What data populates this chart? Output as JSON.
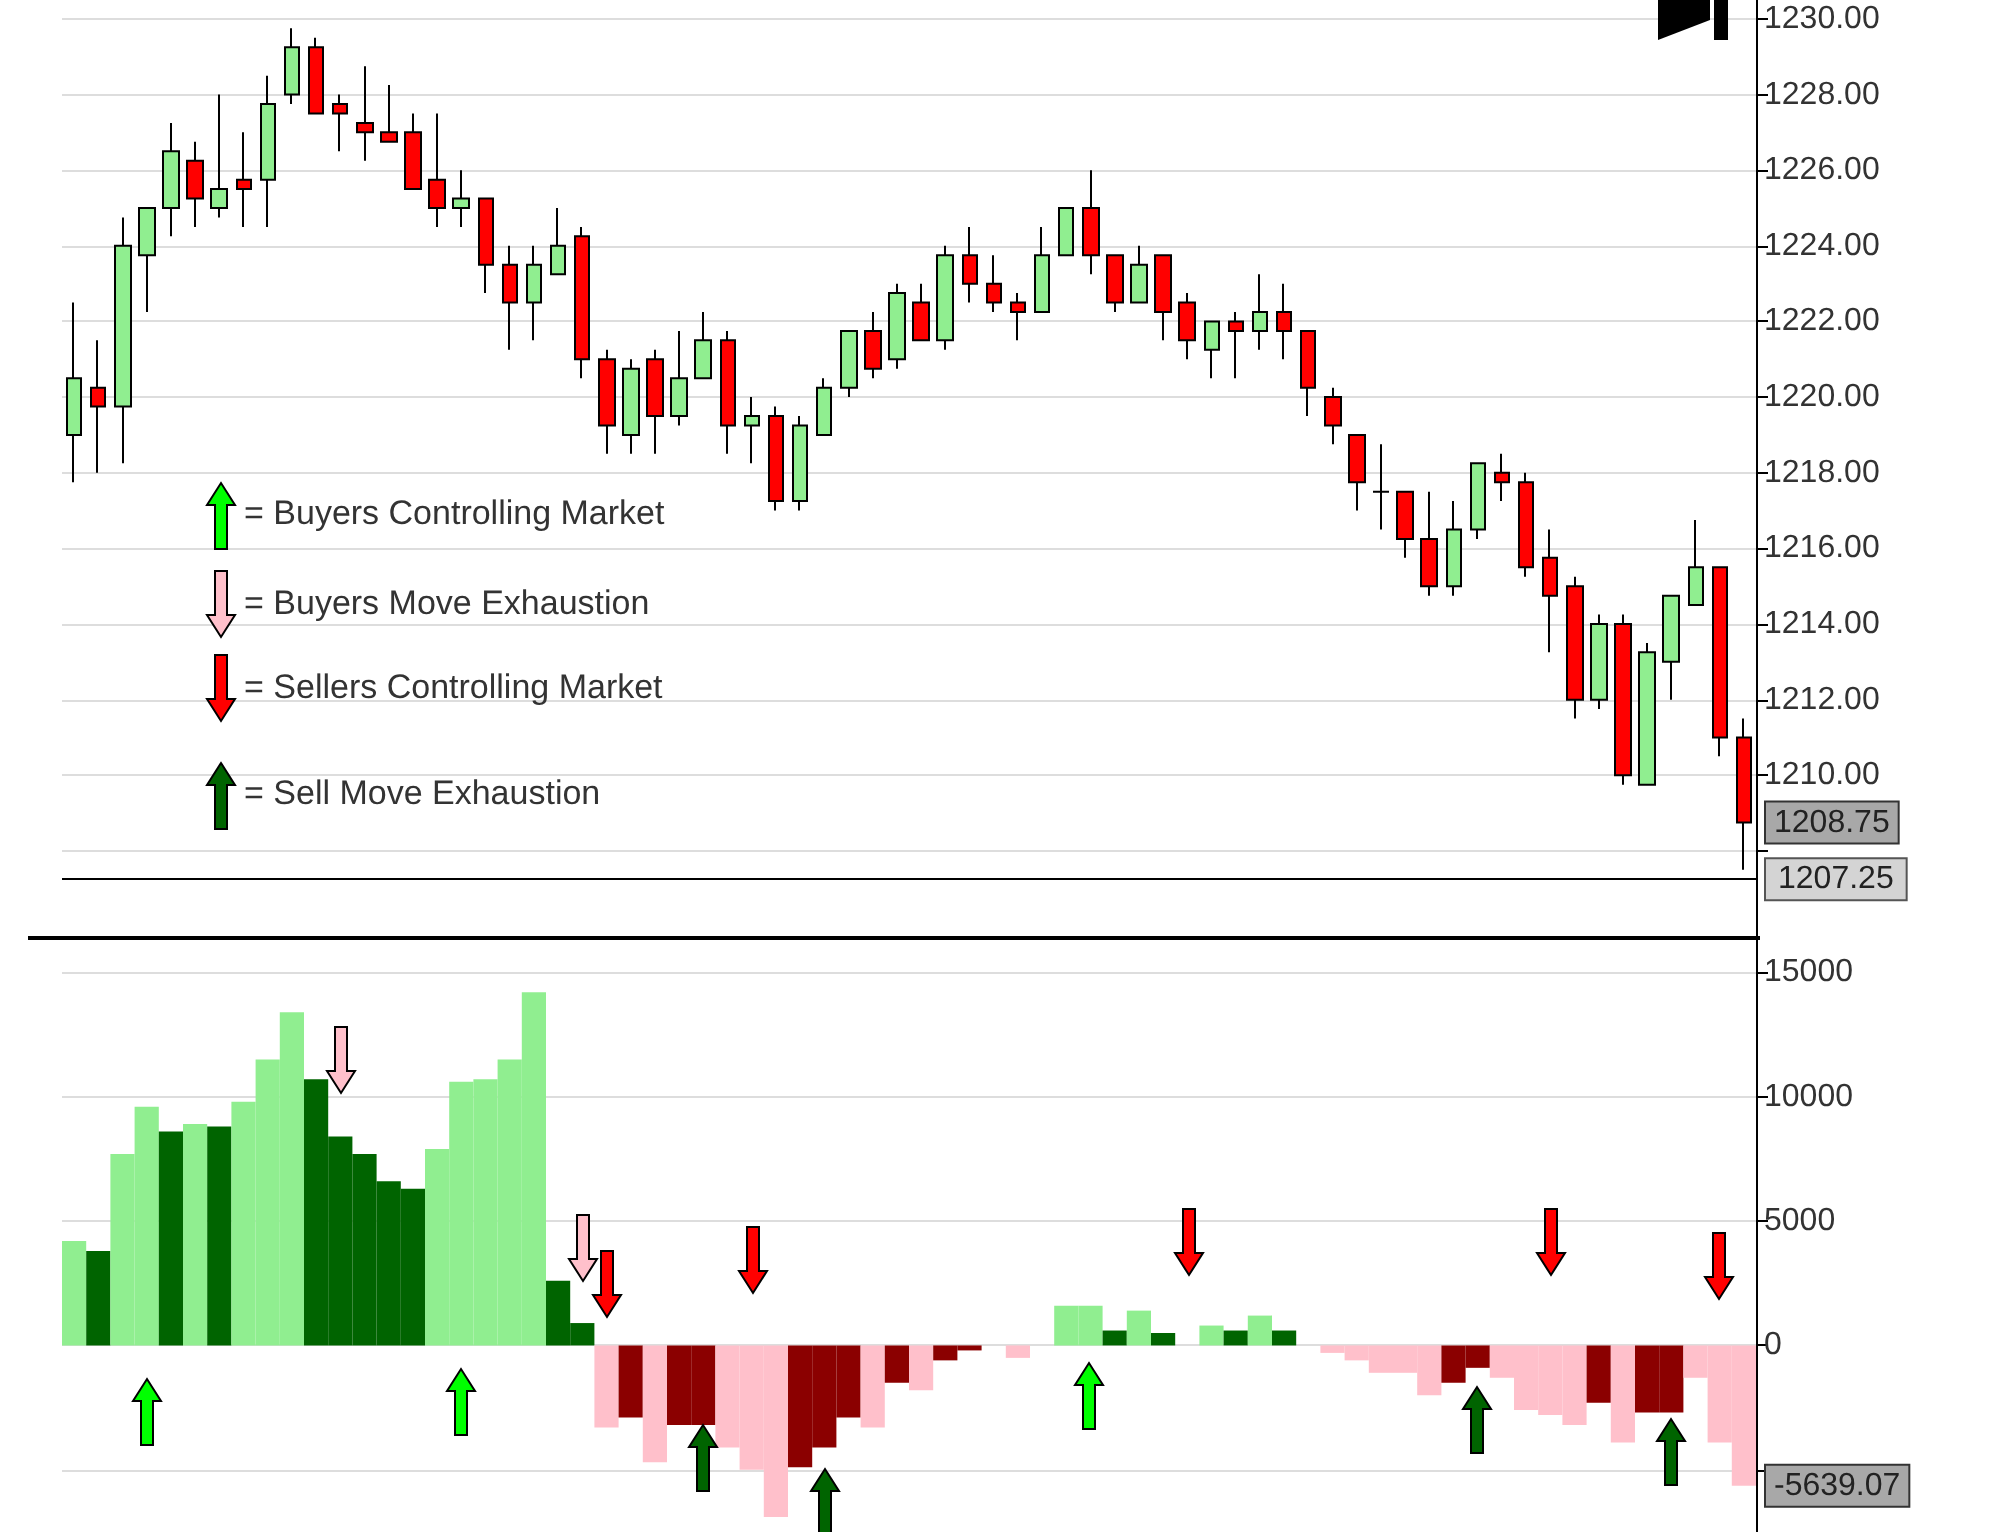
{
  "chart_data": [
    {
      "type": "candlestick",
      "categories": [
        null,
        null,
        null,
        null,
        null,
        null,
        null,
        null,
        null,
        null,
        null,
        null,
        null,
        null,
        null,
        null,
        null,
        null,
        null,
        null,
        null,
        null,
        null,
        null,
        null,
        null,
        null,
        null,
        null,
        null,
        null,
        null,
        null,
        null,
        null,
        null,
        null,
        null,
        null,
        null,
        null,
        null,
        null,
        null,
        null,
        null,
        null,
        null,
        null,
        null,
        null,
        null,
        null,
        null,
        null,
        null,
        null,
        null,
        null,
        null,
        null,
        null,
        null,
        null,
        null,
        null,
        null,
        null,
        null,
        null
      ],
      "ohlc": [
        [
          1219.0,
          1222.5,
          1217.75,
          1220.5
        ],
        [
          1220.25,
          1221.5,
          1218.0,
          1219.75
        ],
        [
          1219.75,
          1224.75,
          1218.25,
          1224.0
        ],
        [
          1223.75,
          1225.0,
          1222.25,
          1225.0
        ],
        [
          1225.0,
          1227.25,
          1224.25,
          1226.5
        ],
        [
          1226.25,
          1226.75,
          1224.5,
          1225.25
        ],
        [
          1225.0,
          1228.0,
          1224.75,
          1225.5
        ],
        [
          1225.75,
          1227.0,
          1224.5,
          1225.5
        ],
        [
          1225.75,
          1228.5,
          1224.5,
          1227.75
        ],
        [
          1228.0,
          1229.75,
          1227.75,
          1229.25
        ],
        [
          1229.25,
          1229.5,
          1227.5,
          1227.5
        ],
        [
          1227.75,
          1228.0,
          1226.5,
          1227.5
        ],
        [
          1227.25,
          1228.75,
          1226.25,
          1227.0
        ],
        [
          1227.0,
          1228.25,
          1226.75,
          1226.75
        ],
        [
          1227.0,
          1227.5,
          1225.5,
          1225.5
        ],
        [
          1225.75,
          1227.5,
          1224.5,
          1225.0
        ],
        [
          1225.0,
          1226.0,
          1224.5,
          1225.25
        ],
        [
          1225.25,
          1225.25,
          1222.75,
          1223.5
        ],
        [
          1223.5,
          1224.0,
          1221.25,
          1222.5
        ],
        [
          1222.5,
          1224.0,
          1221.5,
          1223.5
        ],
        [
          1223.25,
          1225.0,
          1223.25,
          1224.0
        ],
        [
          1224.25,
          1224.5,
          1220.5,
          1221.0
        ],
        [
          1221.0,
          1221.25,
          1218.5,
          1219.25
        ],
        [
          1219.0,
          1221.0,
          1218.5,
          1220.75
        ],
        [
          1221.0,
          1221.25,
          1218.5,
          1219.5
        ],
        [
          1219.5,
          1221.75,
          1219.25,
          1220.5
        ],
        [
          1220.5,
          1222.25,
          1220.5,
          1221.5
        ],
        [
          1221.5,
          1221.75,
          1218.5,
          1219.25
        ],
        [
          1219.25,
          1220.0,
          1218.25,
          1219.5
        ],
        [
          1219.5,
          1219.75,
          1217.0,
          1217.25
        ],
        [
          1217.25,
          1219.5,
          1217.0,
          1219.25
        ],
        [
          1219.0,
          1220.5,
          1219.0,
          1220.25
        ],
        [
          1220.25,
          1221.75,
          1220.0,
          1221.75
        ],
        [
          1221.75,
          1222.25,
          1220.5,
          1220.75
        ],
        [
          1221.0,
          1223.0,
          1220.75,
          1222.75
        ],
        [
          1222.5,
          1223.0,
          1221.5,
          1221.5
        ],
        [
          1221.5,
          1224.0,
          1221.25,
          1223.75
        ],
        [
          1223.75,
          1224.5,
          1222.5,
          1223.0
        ],
        [
          1223.0,
          1223.75,
          1222.25,
          1222.5
        ],
        [
          1222.5,
          1222.75,
          1221.5,
          1222.25
        ],
        [
          1222.25,
          1224.5,
          1222.25,
          1223.75
        ],
        [
          1223.75,
          1225.0,
          1223.75,
          1225.0
        ],
        [
          1225.0,
          1226.0,
          1223.25,
          1223.75
        ],
        [
          1223.75,
          1223.75,
          1222.25,
          1222.5
        ],
        [
          1222.5,
          1224.0,
          1222.5,
          1223.5
        ],
        [
          1223.75,
          1223.75,
          1221.5,
          1222.25
        ],
        [
          1222.5,
          1222.75,
          1221.0,
          1221.5
        ],
        [
          1221.25,
          1222.0,
          1220.5,
          1222.0
        ],
        [
          1222.0,
          1222.25,
          1220.5,
          1221.75
        ],
        [
          1221.75,
          1223.25,
          1221.25,
          1222.25
        ],
        [
          1222.25,
          1223.0,
          1221.0,
          1221.75
        ],
        [
          1221.75,
          1221.75,
          1219.5,
          1220.25
        ],
        [
          1220.0,
          1220.25,
          1218.75,
          1219.25
        ],
        [
          1219.0,
          1219.0,
          1217.0,
          1217.75
        ],
        [
          1217.5,
          1218.75,
          1216.5,
          1217.5
        ],
        [
          1217.5,
          1217.5,
          1215.75,
          1216.25
        ],
        [
          1216.25,
          1217.5,
          1214.75,
          1215.0
        ],
        [
          1215.0,
          1217.25,
          1214.75,
          1216.5
        ],
        [
          1216.5,
          1218.25,
          1216.25,
          1218.25
        ],
        [
          1218.0,
          1218.5,
          1217.25,
          1217.75
        ],
        [
          1217.75,
          1218.0,
          1215.25,
          1215.5
        ],
        [
          1215.75,
          1216.5,
          1213.25,
          1214.75
        ],
        [
          1215.0,
          1215.25,
          1211.5,
          1212.0
        ],
        [
          1212.0,
          1214.25,
          1211.75,
          1214.0
        ],
        [
          1214.0,
          1214.25,
          1209.75,
          1210.0
        ],
        [
          1209.75,
          1213.5,
          1209.75,
          1213.25
        ],
        [
          1213.0,
          1214.75,
          1212.0,
          1214.75
        ],
        [
          1214.5,
          1216.75,
          1214.5,
          1215.5
        ],
        [
          1215.5,
          1215.5,
          1210.5,
          1211.0
        ],
        [
          1211.0,
          1211.5,
          1207.5,
          1208.75
        ]
      ],
      "ylim": [
        1205.75,
        1230.5
      ],
      "yticks": [
        {
          "value": 1208,
          "label": null
        },
        {
          "value": 1210,
          "label": "1210.00"
        },
        {
          "value": 1212,
          "label": "1212.00"
        },
        {
          "value": 1214,
          "label": "1214.00"
        },
        {
          "value": 1216,
          "label": "1216.00"
        },
        {
          "value": 1218,
          "label": "1218.00"
        },
        {
          "value": 1220,
          "label": "1220.00"
        },
        {
          "value": 1222,
          "label": "1222.00"
        },
        {
          "value": 1224,
          "label": "1224.00"
        },
        {
          "value": 1226,
          "label": "1226.00"
        },
        {
          "value": 1228,
          "label": "1228.00"
        },
        {
          "value": 1230,
          "label": "1230.00"
        }
      ],
      "grid": "y",
      "tick_labels": "y",
      "ref_lines": [
        {
          "axis": "y",
          "value": 1207.25,
          "label": "1207.25",
          "color": "#000000"
        }
      ],
      "annotations": [
        "= Buyers Controlling Market",
        "= Buyers Move Exhaustion",
        "= Sellers Controlling Market",
        "= Sell Move Exhaustion",
        "1208.75"
      ]
    },
    {
      "type": "bar",
      "categories": [
        null,
        null,
        null,
        null,
        null,
        null,
        null,
        null,
        null,
        null,
        null,
        null,
        null,
        null,
        null,
        null,
        null,
        null,
        null,
        null,
        null,
        null,
        null,
        null,
        null,
        null,
        null,
        null,
        null,
        null,
        null,
        null,
        null,
        null,
        null,
        null,
        null,
        null,
        null,
        null,
        null,
        null,
        null,
        null,
        null,
        null,
        null,
        null,
        null,
        null,
        null,
        null,
        null,
        null,
        null,
        null,
        null,
        null,
        null,
        null,
        null,
        null,
        null,
        null,
        null,
        null,
        null,
        null,
        null,
        null
      ],
      "values": [
        4200,
        3800,
        7700,
        9600,
        8600,
        8900,
        8800,
        9800,
        11500,
        13400,
        10700,
        8400,
        7700,
        6600,
        6300,
        7900,
        10600,
        10700,
        11500,
        14200,
        2600,
        900,
        -3300,
        -2900,
        -4700,
        -3200,
        -3200,
        -4100,
        -5000,
        -6900,
        -4900,
        -4100,
        -2900,
        -3300,
        -1500,
        -1800,
        -600,
        -200,
        null,
        -500,
        null,
        1600,
        1600,
        600,
        1400,
        500,
        null,
        800,
        600,
        1200,
        600,
        null,
        -300,
        -600,
        -1100,
        -1100,
        -2000,
        -1500,
        -900,
        -1300,
        -2600,
        -2800,
        -3200,
        -2300,
        -3900,
        -2700,
        -2700,
        -1300,
        -3900,
        -5639.07
      ],
      "colors": [
        "#90ee90",
        "#006400",
        "#90ee90",
        "#90ee90",
        "#006400",
        "#90ee90",
        "#006400",
        "#90ee90",
        "#90ee90",
        "#90ee90",
        "#006400",
        "#006400",
        "#006400",
        "#006400",
        "#006400",
        "#90ee90",
        "#90ee90",
        "#90ee90",
        "#90ee90",
        "#90ee90",
        "#006400",
        "#006400",
        "#ffc0cb",
        "#8b0000",
        "#ffc0cb",
        "#8b0000",
        "#8b0000",
        "#ffc0cb",
        "#ffc0cb",
        "#ffc0cb",
        "#8b0000",
        "#8b0000",
        "#8b0000",
        "#ffc0cb",
        "#8b0000",
        "#ffc0cb",
        "#8b0000",
        "#8b0000",
        "#ffc0cb",
        "#ffc0cb",
        "#90ee90",
        "#90ee90",
        "#90ee90",
        "#006400",
        "#90ee90",
        "#006400",
        "#90ee90",
        "#90ee90",
        "#006400",
        "#90ee90",
        "#006400",
        "#ffc0cb",
        "#ffc0cb",
        "#ffc0cb",
        "#ffc0cb",
        "#ffc0cb",
        "#ffc0cb",
        "#8b0000",
        "#8b0000",
        "#ffc0cb",
        "#ffc0cb",
        "#ffc0cb",
        "#ffc0cb",
        "#8b0000",
        "#ffc0cb",
        "#8b0000",
        "#8b0000",
        "#ffc0cb",
        "#ffc0cb",
        "#ffc0cb"
      ],
      "ylim": [
        -7500,
        16300
      ],
      "yticks": [
        {
          "value": -5000,
          "label": null
        },
        0,
        5000,
        10000,
        15000
      ],
      "grid": "y",
      "tick_labels": "y",
      "annotations": [
        "-5639.07"
      ]
    }
  ]
}
